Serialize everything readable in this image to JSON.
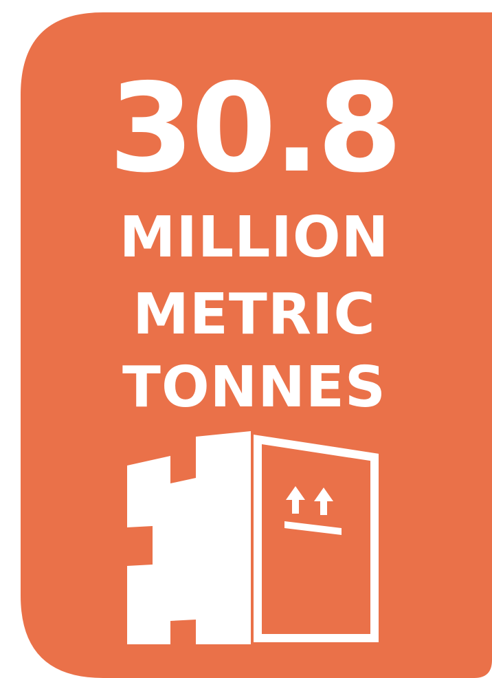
{
  "colors": {
    "card_background": "#EA7149",
    "text": "#FFFFFF"
  },
  "stat": {
    "value": "30.8",
    "unit_lines": [
      "MILLION",
      "METRIC",
      "TONNES"
    ]
  },
  "icon": "package-box-this-side-up-icon"
}
